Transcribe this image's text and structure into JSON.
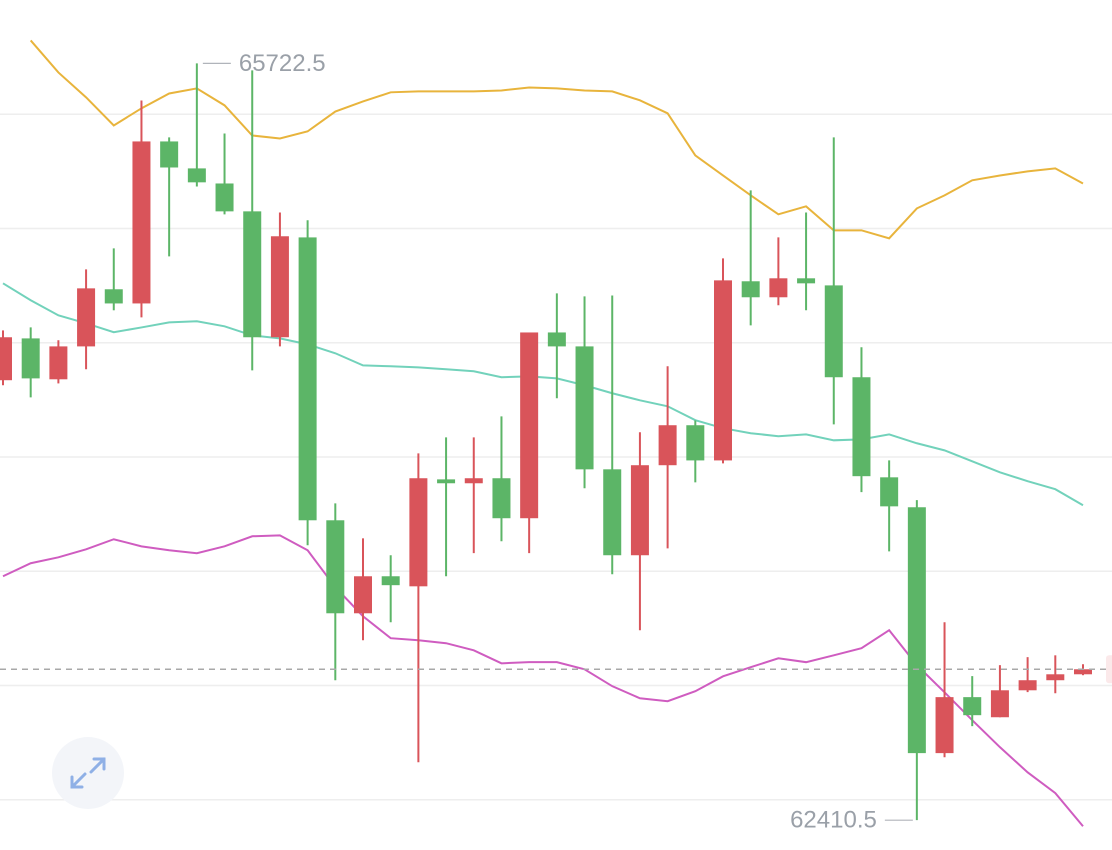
{
  "chart_data": {
    "type": "candlestick",
    "ylim": [
      62280,
      66000
    ],
    "yticks": [
      62500,
      63000,
      63500,
      64000,
      64500,
      65000,
      65500
    ],
    "grid": true,
    "up_color": "#d9545a",
    "down_color": "#5cb567",
    "open": [
      64336,
      64519,
      64340,
      64484,
      64734,
      64672,
      65381,
      65263,
      65197,
      65075,
      64524,
      64961,
      63723,
      63316,
      63478,
      63434,
      63902,
      63885,
      63907,
      63732,
      64545,
      64484,
      63946,
      63570,
      63964,
      64139,
      63985,
      64769,
      64699,
      64782,
      64751,
      64349,
      63911,
      63780,
      62704,
      62949,
      62861,
      62979,
      63023,
      63049
    ],
    "high": [
      64554,
      64567,
      64511,
      64821,
      64913,
      65560,
      65399,
      65722.5,
      65416,
      65692,
      65070,
      65036,
      63797,
      63644,
      63570,
      64016,
      64086,
      64086,
      64178,
      64545,
      64716,
      64703,
      64707,
      64108,
      64397,
      64160,
      64869,
      65167,
      64961,
      65070,
      65399,
      64480,
      63985,
      63811,
      63277,
      63041,
      63089,
      63124,
      63132,
      63093
    ],
    "low": [
      64314,
      64261,
      64322,
      64384,
      64642,
      64611,
      64878,
      65184,
      65062,
      64379,
      64484,
      63614,
      63023,
      63198,
      63277,
      62664,
      63478,
      63579,
      63631,
      63579,
      64257,
      63863,
      63487,
      63242,
      63600,
      63889,
      63972,
      64576,
      64664,
      64642,
      64143,
      63846,
      63587,
      62410.5,
      62686,
      62822,
      62861,
      62971,
      62966,
      63045
    ],
    "close": [
      64524,
      64344,
      64484,
      64738,
      64672,
      65381,
      65267,
      65202,
      65075,
      64524,
      64966,
      63723,
      63316,
      63478,
      63439,
      63907,
      63885,
      63907,
      63732,
      64545,
      64484,
      63946,
      63570,
      63964,
      64139,
      63985,
      64773,
      64699,
      64782,
      64760,
      64349,
      63916,
      63784,
      62704,
      62949,
      62870,
      62979,
      63023,
      63049,
      63071
    ],
    "bands": [
      {
        "color": "#e8b43c",
        "values": [
          null,
          65823,
          65683,
          65574,
          65451,
          65526,
          65591,
          65613,
          65539,
          65407,
          65394,
          65425,
          65512,
          65556,
          65596,
          65600,
          65600,
          65600,
          65604,
          65617,
          65613,
          65604,
          65600,
          65561,
          65504,
          65320,
          65232,
          65145,
          65062,
          65097,
          64992,
          64992,
          64957,
          65088,
          65145,
          65211,
          65232,
          65250,
          65263,
          65197
        ]
      },
      {
        "color": "#72d2bb",
        "values": [
          64760,
          64686,
          64620,
          64585,
          64546,
          64567,
          64589,
          64594,
          64572,
          64532,
          64519,
          64493,
          64454,
          64401,
          64397,
          64392,
          64384,
          64375,
          64349,
          64353,
          64344,
          64314,
          64279,
          64248,
          64222,
          64161,
          64126,
          64104,
          64091,
          64099,
          64073,
          64077,
          64099,
          64060,
          64029,
          63981,
          63933,
          63894,
          63859,
          63789
        ]
      },
      {
        "color": "#cf5cc0",
        "values": [
          63478,
          63535,
          63561,
          63596,
          63640,
          63609,
          63592,
          63579,
          63609,
          63653,
          63657,
          63592,
          63430,
          63303,
          63207,
          63198,
          63185,
          63154,
          63097,
          63102,
          63102,
          63071,
          62997,
          62944,
          62931,
          62975,
          63040,
          63080,
          63119,
          63102,
          63132,
          63163,
          63242,
          63089,
          62970,
          62848,
          62730,
          62620,
          62529,
          62384
        ]
      }
    ]
  }
}
